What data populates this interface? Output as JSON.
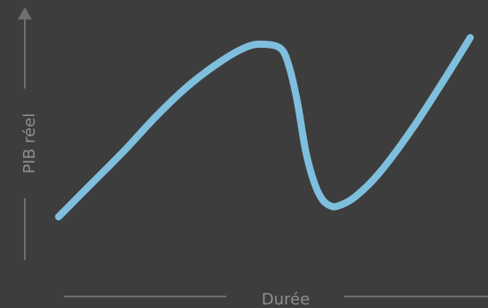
{
  "chart_data": {
    "type": "line",
    "title": "",
    "xlabel": "Durée",
    "ylabel": "PIB réel",
    "grid": false,
    "legend": "none",
    "colors": {
      "background": "#3d3d3d",
      "axis": "#6e6e6e",
      "label": "#8e8e8e",
      "series": "#7fbfde"
    },
    "xlim": [
      0,
      100
    ],
    "ylim": [
      0,
      100
    ],
    "series": [
      {
        "x": [
          0,
          8,
          16,
          24,
          32,
          40,
          46,
          50,
          54,
          56,
          58,
          60,
          62,
          64,
          66,
          68,
          72,
          78,
          86,
          94,
          100
        ],
        "y": [
          10,
          25,
          40,
          56,
          70,
          81,
          87,
          88,
          86,
          78,
          62,
          40,
          26,
          18,
          15,
          15,
          19,
          30,
          50,
          73,
          91
        ]
      }
    ]
  }
}
